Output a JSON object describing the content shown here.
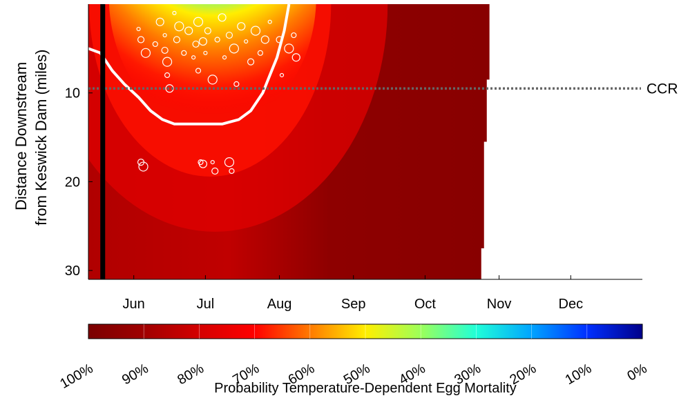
{
  "chart_data": {
    "type": "heatmap",
    "title": "",
    "xlabel": "",
    "ylabel_line1": "Distance Downstream",
    "ylabel_line2": "from Keswick Dam (miles)",
    "x_ticks": [
      "Jun",
      "Jul",
      "Aug",
      "Sep",
      "Oct",
      "Nov",
      "Dec"
    ],
    "y_ticks": [
      "10",
      "20",
      "30"
    ],
    "y_tick_values": [
      10,
      20,
      30
    ],
    "y_range": [
      0,
      31
    ],
    "y_inverted": true,
    "x_range": [
      "2023-05-13",
      "2023-12-31"
    ],
    "data_end_date": "2023-10-28",
    "grid": false,
    "reference_line": {
      "label": "CCR",
      "y": 9.5,
      "style": "dotted",
      "color": "#666666"
    },
    "vertical_marker": {
      "date": "2023-05-19",
      "color": "#000000"
    },
    "contour_80pct": [
      {
        "date": "2023-05-13",
        "y": 5.0
      },
      {
        "date": "2023-05-18",
        "y": 5.5
      },
      {
        "date": "2023-05-23",
        "y": 7.5
      },
      {
        "date": "2023-05-28",
        "y": 9.0
      },
      {
        "date": "2023-06-03",
        "y": 10.5
      },
      {
        "date": "2023-06-08",
        "y": 12.0
      },
      {
        "date": "2023-06-13",
        "y": 13.0
      },
      {
        "date": "2023-06-18",
        "y": 13.5
      },
      {
        "date": "2023-06-28",
        "y": 13.5
      },
      {
        "date": "2023-07-08",
        "y": 13.5
      },
      {
        "date": "2023-07-15",
        "y": 13.0
      },
      {
        "date": "2023-07-20",
        "y": 12.0
      },
      {
        "date": "2023-07-25",
        "y": 10.0
      },
      {
        "date": "2023-07-28",
        "y": 8.0
      },
      {
        "date": "2023-07-31",
        "y": 6.0
      },
      {
        "date": "2023-08-03",
        "y": 3.0
      },
      {
        "date": "2023-08-05",
        "y": 0.0
      }
    ],
    "colorbar": {
      "label": "Probability Temperature-Dependent Egg Mortality",
      "ticks": [
        "100%",
        "90%",
        "80%",
        "70%",
        "60%",
        "50%",
        "40%",
        "30%",
        "20%",
        "10%",
        "0%"
      ],
      "colors": [
        "#7a0000",
        "#a00000",
        "#d40000",
        "#ff0000",
        "#ff7a00",
        "#ffee00",
        "#9cff5a",
        "#20ffd8",
        "#00a4ff",
        "#0030ff",
        "#00008a"
      ]
    },
    "scatter_points": [
      {
        "date": "2023-06-03",
        "y": 2.8
      },
      {
        "date": "2023-06-04",
        "y": 4.0
      },
      {
        "date": "2023-06-06",
        "y": 5.5
      },
      {
        "date": "2023-06-10",
        "y": 4.5
      },
      {
        "date": "2023-06-12",
        "y": 2.0
      },
      {
        "date": "2023-06-14",
        "y": 3.5
      },
      {
        "date": "2023-06-14",
        "y": 5.2
      },
      {
        "date": "2023-06-15",
        "y": 6.5
      },
      {
        "date": "2023-06-15",
        "y": 8.0
      },
      {
        "date": "2023-06-16",
        "y": 9.5
      },
      {
        "date": "2023-06-18",
        "y": 1.0
      },
      {
        "date": "2023-06-19",
        "y": 4.0
      },
      {
        "date": "2023-06-20",
        "y": 2.5
      },
      {
        "date": "2023-06-22",
        "y": 5.5
      },
      {
        "date": "2023-06-24",
        "y": 3.0
      },
      {
        "date": "2023-06-26",
        "y": 6.0
      },
      {
        "date": "2023-06-27",
        "y": 4.5
      },
      {
        "date": "2023-06-28",
        "y": 2.0
      },
      {
        "date": "2023-06-28",
        "y": 7.5
      },
      {
        "date": "2023-06-30",
        "y": 4.2
      },
      {
        "date": "2023-07-01",
        "y": 5.5
      },
      {
        "date": "2023-07-02",
        "y": 3.0
      },
      {
        "date": "2023-07-04",
        "y": 8.5
      },
      {
        "date": "2023-07-06",
        "y": 4.0
      },
      {
        "date": "2023-07-08",
        "y": 1.5
      },
      {
        "date": "2023-07-09",
        "y": 6.0
      },
      {
        "date": "2023-07-11",
        "y": 3.5
      },
      {
        "date": "2023-07-13",
        "y": 5.0
      },
      {
        "date": "2023-07-14",
        "y": 9.0
      },
      {
        "date": "2023-07-16",
        "y": 2.5
      },
      {
        "date": "2023-07-18",
        "y": 4.2
      },
      {
        "date": "2023-07-20",
        "y": 6.5
      },
      {
        "date": "2023-07-22",
        "y": 3.0
      },
      {
        "date": "2023-07-24",
        "y": 5.5
      },
      {
        "date": "2023-07-26",
        "y": 4.0
      },
      {
        "date": "2023-07-28",
        "y": 2.0
      },
      {
        "date": "2023-08-01",
        "y": 4.0
      },
      {
        "date": "2023-08-05",
        "y": 5.0
      },
      {
        "date": "2023-08-07",
        "y": 3.5
      },
      {
        "date": "2023-08-08",
        "y": 6.0
      },
      {
        "date": "2023-08-02",
        "y": 8.0
      },
      {
        "date": "2023-06-04",
        "y": 17.8
      },
      {
        "date": "2023-06-05",
        "y": 18.3
      },
      {
        "date": "2023-06-29",
        "y": 17.8
      },
      {
        "date": "2023-06-30",
        "y": 18.0
      },
      {
        "date": "2023-07-04",
        "y": 17.8
      },
      {
        "date": "2023-07-05",
        "y": 18.8
      },
      {
        "date": "2023-07-11",
        "y": 17.8
      },
      {
        "date": "2023-07-12",
        "y": 18.8
      }
    ]
  }
}
